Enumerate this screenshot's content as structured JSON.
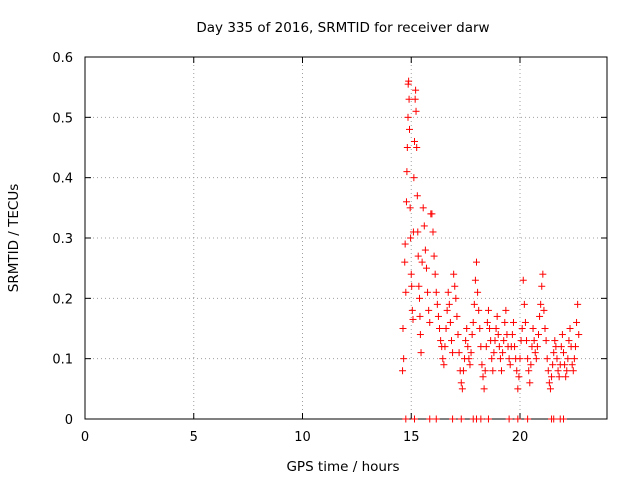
{
  "chart_data": {
    "type": "scatter",
    "title": "Day 335 of 2016, SRMTID for receiver darw",
    "xlabel": "GPS time / hours",
    "ylabel": "SRMTID / TECUs",
    "xlim": [
      0,
      24
    ],
    "ylim": [
      0,
      0.6
    ],
    "xticks": [
      0,
      5,
      10,
      15,
      20
    ],
    "yticks": [
      0,
      0.1,
      0.2,
      0.3,
      0.4,
      0.5,
      0.6
    ],
    "xtick_labels": [
      "0",
      "5",
      "10",
      "15",
      "20"
    ],
    "ytick_labels": [
      "0",
      "0.1",
      "0.2",
      "0.3",
      "0.4",
      "0.5",
      "0.6"
    ],
    "grid": true,
    "marker": "+",
    "color": "#ff0000",
    "series": [
      {
        "name": "SRMTID",
        "points": [
          [
            14.6,
            0.08
          ],
          [
            14.65,
            0.1
          ],
          [
            14.62,
            0.15
          ],
          [
            14.7,
            0.26
          ],
          [
            14.72,
            0.29
          ],
          [
            14.75,
            0.21
          ],
          [
            14.78,
            0.36
          ],
          [
            14.8,
            0.41
          ],
          [
            14.82,
            0.45
          ],
          [
            14.85,
            0.5
          ],
          [
            14.86,
            0.555
          ],
          [
            14.88,
            0.56
          ],
          [
            14.9,
            0.53
          ],
          [
            14.92,
            0.48
          ],
          [
            14.95,
            0.35
          ],
          [
            14.97,
            0.3
          ],
          [
            15.0,
            0.24
          ],
          [
            15.02,
            0.22
          ],
          [
            15.05,
            0.18
          ],
          [
            15.08,
            0.165
          ],
          [
            15.1,
            0.31
          ],
          [
            15.12,
            0.4
          ],
          [
            15.15,
            0.46
          ],
          [
            15.18,
            0.53
          ],
          [
            15.2,
            0.545
          ],
          [
            15.22,
            0.51
          ],
          [
            15.25,
            0.45
          ],
          [
            15.28,
            0.37
          ],
          [
            15.3,
            0.31
          ],
          [
            15.32,
            0.27
          ],
          [
            15.35,
            0.22
          ],
          [
            15.38,
            0.2
          ],
          [
            15.4,
            0.17
          ],
          [
            15.42,
            0.14
          ],
          [
            15.45,
            0.11
          ],
          [
            15.5,
            0.26
          ],
          [
            15.55,
            0.35
          ],
          [
            15.6,
            0.32
          ],
          [
            15.65,
            0.28
          ],
          [
            15.7,
            0.25
          ],
          [
            15.75,
            0.21
          ],
          [
            15.8,
            0.18
          ],
          [
            15.85,
            0.16
          ],
          [
            15.9,
            0.34
          ],
          [
            15.95,
            0.34
          ],
          [
            16.0,
            0.31
          ],
          [
            16.05,
            0.27
          ],
          [
            16.1,
            0.24
          ],
          [
            16.15,
            0.21
          ],
          [
            16.2,
            0.19
          ],
          [
            16.25,
            0.17
          ],
          [
            16.3,
            0.15
          ],
          [
            16.35,
            0.13
          ],
          [
            16.4,
            0.12
          ],
          [
            16.45,
            0.1
          ],
          [
            16.5,
            0.09
          ],
          [
            16.55,
            0.12
          ],
          [
            16.6,
            0.15
          ],
          [
            16.65,
            0.18
          ],
          [
            16.7,
            0.21
          ],
          [
            16.75,
            0.19
          ],
          [
            16.8,
            0.16
          ],
          [
            16.85,
            0.13
          ],
          [
            16.9,
            0.11
          ],
          [
            16.95,
            0.24
          ],
          [
            17.0,
            0.22
          ],
          [
            17.05,
            0.2
          ],
          [
            17.1,
            0.17
          ],
          [
            17.15,
            0.14
          ],
          [
            17.2,
            0.11
          ],
          [
            17.25,
            0.08
          ],
          [
            17.3,
            0.06
          ],
          [
            17.35,
            0.05
          ],
          [
            17.4,
            0.08
          ],
          [
            17.45,
            0.1
          ],
          [
            17.5,
            0.13
          ],
          [
            17.55,
            0.15
          ],
          [
            17.6,
            0.12
          ],
          [
            17.65,
            0.1
          ],
          [
            17.7,
            0.09
          ],
          [
            17.75,
            0.11
          ],
          [
            17.8,
            0.14
          ],
          [
            17.85,
            0.16
          ],
          [
            17.9,
            0.19
          ],
          [
            17.95,
            0.23
          ],
          [
            18.0,
            0.26
          ],
          [
            18.05,
            0.21
          ],
          [
            18.1,
            0.18
          ],
          [
            18.15,
            0.15
          ],
          [
            18.2,
            0.12
          ],
          [
            18.25,
            0.09
          ],
          [
            18.3,
            0.07
          ],
          [
            18.35,
            0.05
          ],
          [
            18.4,
            0.08
          ],
          [
            18.45,
            0.12
          ],
          [
            18.5,
            0.16
          ],
          [
            18.55,
            0.18
          ],
          [
            18.6,
            0.15
          ],
          [
            18.65,
            0.13
          ],
          [
            18.7,
            0.1
          ],
          [
            18.75,
            0.08
          ],
          [
            18.8,
            0.11
          ],
          [
            18.85,
            0.13
          ],
          [
            18.9,
            0.15
          ],
          [
            18.95,
            0.17
          ],
          [
            19.0,
            0.14
          ],
          [
            19.05,
            0.12
          ],
          [
            19.1,
            0.1
          ],
          [
            19.15,
            0.08
          ],
          [
            19.2,
            0.11
          ],
          [
            19.25,
            0.13
          ],
          [
            19.3,
            0.16
          ],
          [
            19.35,
            0.18
          ],
          [
            19.4,
            0.14
          ],
          [
            19.45,
            0.12
          ],
          [
            19.5,
            0.1
          ],
          [
            19.55,
            0.09
          ],
          [
            19.6,
            0.12
          ],
          [
            19.65,
            0.14
          ],
          [
            19.7,
            0.16
          ],
          [
            19.75,
            0.12
          ],
          [
            19.8,
            0.1
          ],
          [
            19.85,
            0.08
          ],
          [
            19.9,
            0.05
          ],
          [
            19.95,
            0.07
          ],
          [
            20.0,
            0.1
          ],
          [
            20.05,
            0.13
          ],
          [
            20.1,
            0.15
          ],
          [
            20.15,
            0.23
          ],
          [
            20.2,
            0.19
          ],
          [
            20.25,
            0.16
          ],
          [
            20.3,
            0.13
          ],
          [
            20.35,
            0.1
          ],
          [
            20.4,
            0.08
          ],
          [
            20.45,
            0.06
          ],
          [
            20.5,
            0.09
          ],
          [
            20.55,
            0.12
          ],
          [
            20.6,
            0.15
          ],
          [
            20.65,
            0.13
          ],
          [
            20.7,
            0.11
          ],
          [
            20.75,
            0.1
          ],
          [
            20.8,
            0.12
          ],
          [
            20.85,
            0.14
          ],
          [
            20.9,
            0.17
          ],
          [
            20.95,
            0.19
          ],
          [
            21.0,
            0.22
          ],
          [
            21.05,
            0.24
          ],
          [
            21.1,
            0.18
          ],
          [
            21.15,
            0.15
          ],
          [
            21.2,
            0.13
          ],
          [
            21.25,
            0.1
          ],
          [
            21.3,
            0.08
          ],
          [
            21.35,
            0.06
          ],
          [
            21.4,
            0.05
          ],
          [
            21.45,
            0.07
          ],
          [
            21.5,
            0.09
          ],
          [
            21.55,
            0.11
          ],
          [
            21.6,
            0.13
          ],
          [
            21.65,
            0.12
          ],
          [
            21.7,
            0.1
          ],
          [
            21.75,
            0.08
          ],
          [
            21.8,
            0.07
          ],
          [
            21.85,
            0.09
          ],
          [
            21.9,
            0.12
          ],
          [
            21.95,
            0.14
          ],
          [
            22.0,
            0.11
          ],
          [
            22.05,
            0.09
          ],
          [
            22.1,
            0.07
          ],
          [
            22.15,
            0.08
          ],
          [
            22.2,
            0.1
          ],
          [
            22.25,
            0.13
          ],
          [
            22.3,
            0.15
          ],
          [
            22.35,
            0.12
          ],
          [
            22.4,
            0.09
          ],
          [
            22.45,
            0.08
          ],
          [
            22.5,
            0.1
          ],
          [
            22.55,
            0.12
          ],
          [
            22.6,
            0.16
          ],
          [
            22.65,
            0.19
          ],
          [
            22.7,
            0.14
          ]
        ]
      }
    ],
    "baseline_markers_x": [
      14.75,
      15.15,
      15.85,
      16.15,
      16.9,
      17.3,
      17.85,
      18.0,
      18.2,
      18.55,
      19.5,
      19.9,
      20.35,
      21.45,
      21.55,
      21.85,
      22.0
    ]
  }
}
